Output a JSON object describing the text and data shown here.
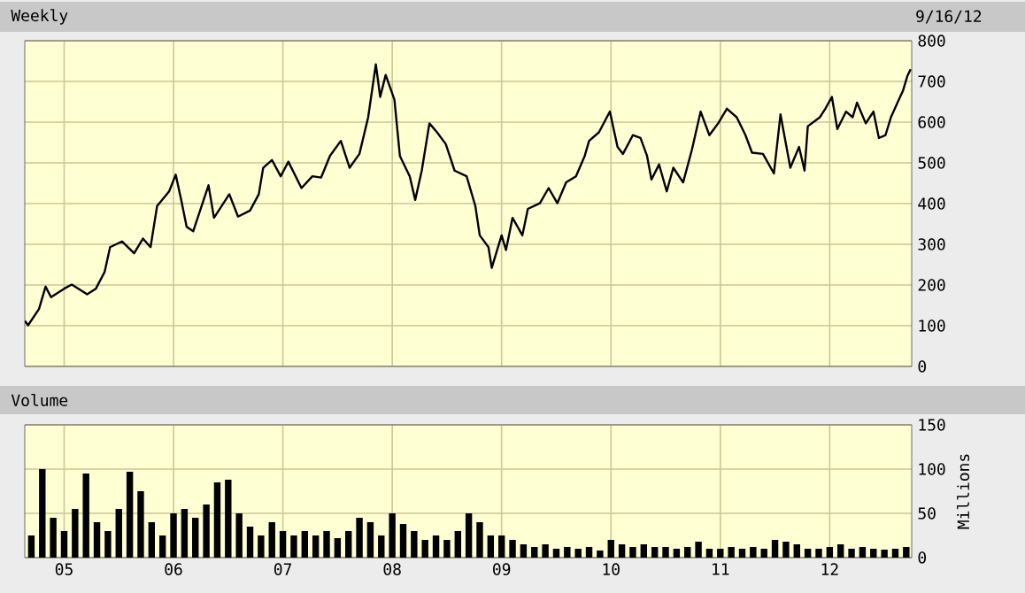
{
  "chart_data": [
    {
      "type": "line",
      "title": "Weekly",
      "annotations": [
        "9/16/12"
      ],
      "color": "#000000",
      "x": [
        2004.64,
        2004.67,
        2004.77,
        2004.83,
        2004.88,
        2005.0,
        2005.07,
        2005.21,
        2005.29,
        2005.37,
        2005.42,
        2005.53,
        2005.64,
        2005.72,
        2005.79,
        2005.85,
        2005.96,
        2006.02,
        2006.07,
        2006.12,
        2006.18,
        2006.32,
        2006.37,
        2006.51,
        2006.59,
        2006.7,
        2006.78,
        2006.82,
        2006.9,
        2006.98,
        2007.05,
        2007.17,
        2007.27,
        2007.35,
        2007.43,
        2007.53,
        2007.61,
        2007.7,
        2007.78,
        2007.85,
        2007.89,
        2007.94,
        2008.02,
        2008.07,
        2008.16,
        2008.21,
        2008.27,
        2008.34,
        2008.41,
        2008.49,
        2008.57,
        2008.68,
        2008.76,
        2008.8,
        2008.88,
        2008.91,
        2009.0,
        2009.04,
        2009.1,
        2009.19,
        2009.24,
        2009.35,
        2009.43,
        2009.51,
        2009.59,
        2009.68,
        2009.76,
        2009.8,
        2009.89,
        2009.99,
        2010.06,
        2010.11,
        2010.2,
        2010.27,
        2010.33,
        2010.37,
        2010.44,
        2010.51,
        2010.57,
        2010.66,
        2010.74,
        2010.82,
        2010.9,
        2010.98,
        2011.06,
        2011.15,
        2011.23,
        2011.29,
        2011.39,
        2011.49,
        2011.55,
        2011.64,
        2011.72,
        2011.77,
        2011.8,
        2011.91,
        2011.96,
        2012.02,
        2012.07,
        2012.15,
        2012.21,
        2012.25,
        2012.33,
        2012.4,
        2012.45,
        2012.51,
        2012.56,
        2012.62,
        2012.67,
        2012.71,
        2012.74
      ],
      "values": [
        112,
        101,
        141,
        196,
        170,
        191,
        201,
        177,
        191,
        232,
        293,
        307,
        278,
        314,
        293,
        394,
        430,
        471,
        409,
        343,
        332,
        445,
        365,
        423,
        368,
        383,
        423,
        488,
        507,
        467,
        503,
        438,
        467,
        464,
        517,
        554,
        488,
        522,
        612,
        742,
        662,
        716,
        655,
        517,
        467,
        409,
        481,
        597,
        575,
        546,
        481,
        467,
        394,
        322,
        293,
        242,
        322,
        286,
        365,
        322,
        387,
        401,
        438,
        401,
        452,
        467,
        517,
        554,
        575,
        626,
        539,
        522,
        568,
        561,
        517,
        459,
        496,
        430,
        488,
        452,
        532,
        626,
        568,
        597,
        633,
        612,
        568,
        525,
        522,
        474,
        619,
        488,
        539,
        481,
        590,
        612,
        633,
        662,
        583,
        626,
        612,
        648,
        597,
        626,
        561,
        568,
        612,
        648,
        677,
        713,
        730
      ],
      "xlim": [
        2004.64,
        2012.75
      ],
      "xticks": [
        {
          "value": 2005,
          "label": null
        },
        {
          "value": 2006,
          "label": null
        },
        {
          "value": 2007,
          "label": null
        },
        {
          "value": 2008,
          "label": null
        },
        {
          "value": 2009,
          "label": null
        },
        {
          "value": 2010,
          "label": null
        },
        {
          "value": 2011,
          "label": null
        },
        {
          "value": 2012,
          "label": null
        }
      ],
      "ylim": [
        0,
        800
      ],
      "yticks": [
        0,
        100,
        200,
        300,
        400,
        500,
        600,
        700,
        800
      ],
      "grid": true,
      "tick_labels": "y"
    },
    {
      "type": "bar",
      "title": "Volume",
      "ylabel": "Millions",
      "color": "#000000",
      "x": [
        2004.7,
        2004.8,
        2004.9,
        2005.0,
        2005.1,
        2005.2,
        2005.3,
        2005.4,
        2005.5,
        2005.6,
        2005.7,
        2005.8,
        2005.9,
        2006.0,
        2006.1,
        2006.2,
        2006.3,
        2006.4,
        2006.5,
        2006.6,
        2006.7,
        2006.8,
        2006.9,
        2007.0,
        2007.1,
        2007.2,
        2007.3,
        2007.4,
        2007.5,
        2007.6,
        2007.7,
        2007.8,
        2007.9,
        2008.0,
        2008.1,
        2008.2,
        2008.3,
        2008.4,
        2008.5,
        2008.6,
        2008.7,
        2008.8,
        2008.9,
        2009.0,
        2009.1,
        2009.2,
        2009.3,
        2009.4,
        2009.5,
        2009.6,
        2009.7,
        2009.8,
        2009.9,
        2010.0,
        2010.1,
        2010.2,
        2010.3,
        2010.4,
        2010.5,
        2010.6,
        2010.7,
        2010.8,
        2010.9,
        2011.0,
        2011.1,
        2011.2,
        2011.3,
        2011.4,
        2011.5,
        2011.6,
        2011.7,
        2011.8,
        2011.9,
        2012.0,
        2012.1,
        2012.2,
        2012.3,
        2012.4,
        2012.5,
        2012.6,
        2012.7
      ],
      "values": [
        25,
        100,
        45,
        30,
        55,
        95,
        40,
        30,
        55,
        97,
        75,
        40,
        25,
        50,
        55,
        45,
        60,
        85,
        88,
        50,
        35,
        25,
        40,
        30,
        25,
        30,
        25,
        30,
        22,
        30,
        45,
        40,
        25,
        50,
        38,
        30,
        20,
        25,
        20,
        30,
        50,
        40,
        25,
        25,
        20,
        15,
        12,
        15,
        10,
        12,
        10,
        12,
        8,
        20,
        15,
        12,
        15,
        12,
        12,
        10,
        12,
        18,
        10,
        10,
        12,
        10,
        12,
        10,
        20,
        18,
        15,
        10,
        10,
        12,
        15,
        10,
        12,
        10,
        9,
        10,
        12
      ],
      "xlim": [
        2004.64,
        2012.75
      ],
      "xticks": [
        {
          "value": 2005,
          "label": "05"
        },
        {
          "value": 2006,
          "label": "06"
        },
        {
          "value": 2007,
          "label": "07"
        },
        {
          "value": 2008,
          "label": "08"
        },
        {
          "value": 2009,
          "label": "09"
        },
        {
          "value": 2010,
          "label": "10"
        },
        {
          "value": 2011,
          "label": "11"
        },
        {
          "value": 2012,
          "label": "12"
        }
      ],
      "ylim": [
        0,
        150
      ],
      "yticks": [
        0,
        50,
        100,
        150
      ],
      "grid": true
    }
  ]
}
